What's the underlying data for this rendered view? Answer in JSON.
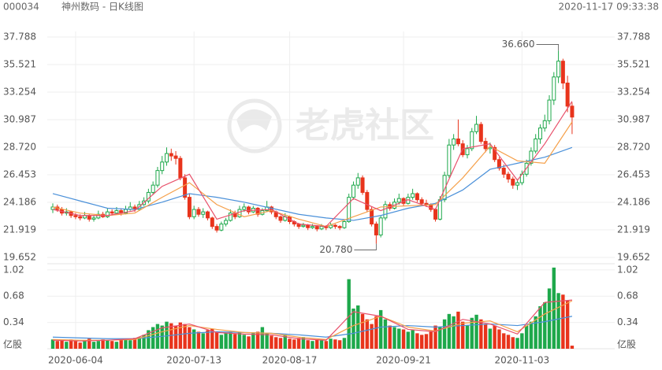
{
  "header": {
    "code": "000034",
    "name": "神州数码 - 日K线图",
    "datetime": "2020-11-17 09:33:38"
  },
  "watermark": "老虎社区",
  "chart_data": {
    "type": "candlestick",
    "up_color": "#1ea84b",
    "down_color": "#e8341c",
    "ylim": [
      19.652,
      37.788
    ],
    "yticks": [
      37.788,
      35.521,
      33.254,
      30.987,
      {
        "value": 28.72,
        "label": "28.720"
      },
      26.453,
      24.186,
      21.919,
      19.652
    ],
    "xticks": [
      {
        "value": 5,
        "label": "2020-06-04"
      },
      {
        "value": 31,
        "label": "2020-07-13"
      },
      {
        "value": 52,
        "label": "2020-08-17"
      },
      {
        "value": 77,
        "label": "2020-09-21"
      },
      {
        "value": 103,
        "label": "2020-11-03"
      }
    ],
    "grid": true,
    "candles": [
      [
        23.6,
        24.1,
        23.3,
        23.8
      ],
      [
        23.8,
        24.0,
        23.4,
        23.6
      ],
      [
        23.6,
        23.8,
        23.1,
        23.3
      ],
      [
        23.3,
        23.7,
        23.1,
        23.4
      ],
      [
        23.4,
        23.5,
        22.9,
        23.1
      ],
      [
        23.1,
        23.3,
        22.8,
        23.0
      ],
      [
        23.0,
        23.2,
        22.7,
        22.9
      ],
      [
        22.9,
        23.4,
        22.8,
        23.1
      ],
      [
        23.1,
        23.2,
        22.6,
        22.8
      ],
      [
        22.8,
        23.1,
        22.6,
        22.9
      ],
      [
        22.9,
        23.5,
        22.8,
        23.2
      ],
      [
        23.2,
        23.4,
        22.9,
        23.0
      ],
      [
        23.0,
        23.7,
        22.9,
        23.4
      ],
      [
        23.4,
        23.6,
        23.1,
        23.3
      ],
      [
        23.3,
        23.8,
        23.2,
        23.5
      ],
      [
        23.5,
        23.7,
        23.1,
        23.3
      ],
      [
        23.3,
        23.9,
        23.2,
        23.6
      ],
      [
        23.6,
        24.2,
        23.5,
        23.8
      ],
      [
        23.8,
        24.0,
        23.4,
        23.6
      ],
      [
        23.6,
        24.3,
        23.5,
        24.0
      ],
      [
        24.0,
        24.6,
        23.9,
        24.3
      ],
      [
        24.3,
        25.3,
        24.1,
        25.0
      ],
      [
        25.0,
        25.9,
        24.8,
        25.6
      ],
      [
        25.6,
        27.1,
        25.4,
        26.8
      ],
      [
        26.8,
        28.0,
        26.5,
        27.5
      ],
      [
        27.5,
        28.7,
        27.2,
        28.2
      ],
      [
        28.2,
        28.6,
        27.6,
        28.0
      ],
      [
        28.0,
        28.4,
        27.3,
        27.8
      ],
      [
        27.8,
        28.0,
        26.0,
        26.2
      ],
      [
        26.2,
        26.5,
        24.4,
        24.6
      ],
      [
        24.6,
        24.9,
        22.8,
        23.0
      ],
      [
        23.0,
        23.9,
        22.8,
        23.6
      ],
      [
        23.6,
        23.8,
        23.0,
        23.2
      ],
      [
        23.2,
        23.7,
        22.9,
        23.4
      ],
      [
        23.4,
        23.5,
        22.7,
        22.9
      ],
      [
        22.9,
        23.0,
        22.0,
        22.2
      ],
      [
        22.2,
        22.4,
        21.7,
        21.9
      ],
      [
        21.9,
        22.6,
        21.8,
        22.4
      ],
      [
        22.4,
        22.9,
        22.2,
        22.7
      ],
      [
        22.7,
        23.6,
        22.6,
        23.3
      ],
      [
        23.3,
        23.5,
        22.8,
        23.0
      ],
      [
        23.0,
        23.9,
        22.9,
        23.6
      ],
      [
        23.6,
        24.1,
        23.4,
        23.8
      ],
      [
        23.8,
        23.9,
        23.2,
        23.4
      ],
      [
        23.4,
        23.9,
        23.3,
        23.7
      ],
      [
        23.7,
        23.8,
        23.0,
        23.2
      ],
      [
        23.2,
        23.7,
        23.1,
        23.5
      ],
      [
        23.5,
        24.3,
        23.4,
        23.8
      ],
      [
        23.8,
        23.9,
        23.2,
        23.4
      ],
      [
        23.4,
        23.5,
        22.8,
        23.0
      ],
      [
        23.0,
        23.1,
        22.5,
        22.7
      ],
      [
        22.7,
        23.3,
        22.6,
        23.0
      ],
      [
        23.0,
        23.1,
        22.4,
        22.6
      ],
      [
        22.6,
        22.7,
        22.2,
        22.4
      ],
      [
        22.4,
        22.5,
        22.0,
        22.2
      ],
      [
        22.2,
        22.5,
        22.1,
        22.3
      ],
      [
        22.3,
        22.4,
        21.9,
        22.1
      ],
      [
        22.1,
        22.4,
        22.0,
        22.2
      ],
      [
        22.2,
        22.3,
        21.8,
        22.0
      ],
      [
        22.0,
        22.4,
        21.9,
        22.2
      ],
      [
        22.2,
        22.3,
        21.9,
        22.1
      ],
      [
        22.1,
        22.5,
        22.0,
        22.3
      ],
      [
        22.3,
        22.4,
        22.0,
        22.2
      ],
      [
        22.2,
        22.3,
        21.9,
        22.1
      ],
      [
        22.1,
        22.8,
        22.0,
        22.6
      ],
      [
        22.6,
        24.9,
        22.5,
        24.6
      ],
      [
        24.6,
        25.9,
        24.4,
        25.6
      ],
      [
        25.6,
        26.6,
        25.3,
        26.2
      ],
      [
        26.2,
        26.4,
        24.8,
        25.0
      ],
      [
        25.0,
        25.2,
        23.4,
        23.6
      ],
      [
        23.6,
        23.8,
        22.2,
        22.4
      ],
      [
        22.4,
        22.6,
        20.78,
        21.5
      ],
      [
        21.5,
        23.1,
        21.3,
        22.9
      ],
      [
        22.9,
        24.3,
        22.7,
        24.0
      ],
      [
        24.0,
        24.2,
        23.5,
        23.7
      ],
      [
        23.7,
        24.5,
        23.6,
        24.2
      ],
      [
        24.2,
        24.9,
        24.0,
        24.5
      ],
      [
        24.5,
        24.6,
        23.9,
        24.1
      ],
      [
        24.1,
        24.9,
        24.0,
        24.6
      ],
      [
        24.6,
        25.3,
        24.4,
        24.9
      ],
      [
        24.9,
        25.0,
        24.2,
        24.4
      ],
      [
        24.4,
        24.6,
        23.9,
        24.1
      ],
      [
        24.1,
        24.4,
        23.8,
        24.0
      ],
      [
        24.0,
        24.1,
        23.4,
        23.6
      ],
      [
        23.6,
        23.7,
        22.6,
        22.8
      ],
      [
        22.8,
        24.7,
        22.7,
        24.4
      ],
      [
        24.4,
        26.7,
        24.2,
        26.4
      ],
      [
        26.4,
        29.4,
        26.2,
        28.9
      ],
      [
        28.9,
        29.8,
        28.5,
        29.4
      ],
      [
        29.4,
        31.0,
        28.8,
        29.0
      ],
      [
        29.0,
        29.3,
        27.9,
        28.1
      ],
      [
        28.1,
        28.9,
        27.8,
        28.6
      ],
      [
        28.6,
        30.3,
        28.4,
        30.0
      ],
      [
        30.0,
        31.3,
        29.8,
        30.6
      ],
      [
        30.6,
        30.8,
        29.0,
        29.2
      ],
      [
        29.2,
        29.5,
        28.3,
        28.6
      ],
      [
        28.6,
        29.1,
        28.2,
        28.7
      ],
      [
        28.7,
        28.9,
        27.5,
        27.7
      ],
      [
        27.7,
        27.9,
        26.8,
        27.0
      ],
      [
        27.0,
        27.3,
        26.2,
        26.5
      ],
      [
        26.5,
        26.7,
        25.8,
        26.1
      ],
      [
        26.1,
        26.3,
        25.3,
        25.6
      ],
      [
        25.6,
        26.1,
        25.2,
        25.8
      ],
      [
        25.8,
        26.8,
        25.6,
        26.5
      ],
      [
        26.5,
        27.7,
        26.3,
        27.4
      ],
      [
        27.4,
        28.7,
        27.2,
        28.4
      ],
      [
        28.4,
        29.8,
        28.2,
        29.4
      ],
      [
        29.4,
        30.6,
        29.0,
        30.3
      ],
      [
        30.3,
        31.4,
        30.0,
        30.9
      ],
      [
        30.9,
        33.0,
        30.6,
        32.6
      ],
      [
        32.6,
        34.9,
        32.2,
        34.5
      ],
      [
        34.5,
        36.66,
        34.0,
        35.8
      ],
      [
        35.8,
        36.0,
        33.5,
        34.0
      ],
      [
        34.0,
        34.6,
        31.6,
        32.1
      ],
      [
        32.1,
        32.4,
        29.8,
        31.2
      ]
    ],
    "lines": [
      {
        "color": "#4a90d9",
        "x": [
          0,
          6,
          12,
          18,
          24,
          30,
          36,
          42,
          48,
          54,
          60,
          66,
          72,
          78,
          84,
          90,
          96,
          102,
          108,
          114
        ],
        "values": [
          24.9,
          24.3,
          23.7,
          23.6,
          24.2,
          24.9,
          24.6,
          24.2,
          23.7,
          23.2,
          22.9,
          22.7,
          23.1,
          23.7,
          24.1,
          25.2,
          26.9,
          27.4,
          27.9,
          28.7
        ]
      },
      {
        "color": "#f5a04a",
        "x": [
          0,
          6,
          12,
          18,
          24,
          30,
          36,
          42,
          48,
          54,
          60,
          66,
          72,
          78,
          84,
          90,
          96,
          102,
          108,
          114
        ],
        "values": [
          23.8,
          23.3,
          23.1,
          23.3,
          24.6,
          25.8,
          24.0,
          23.0,
          23.5,
          22.8,
          22.2,
          23.0,
          23.8,
          23.9,
          24.0,
          26.2,
          28.8,
          27.6,
          27.4,
          30.8
        ]
      },
      {
        "color": "#e8506a",
        "x": [
          0,
          6,
          12,
          18,
          24,
          30,
          36,
          42,
          48,
          54,
          60,
          66,
          72,
          78,
          84,
          90,
          96,
          102,
          108,
          114
        ],
        "values": [
          23.6,
          23.1,
          23.1,
          23.5,
          25.5,
          26.5,
          22.8,
          23.5,
          23.6,
          22.4,
          22.2,
          24.5,
          23.5,
          24.4,
          23.6,
          28.6,
          29.0,
          26.0,
          29.0,
          32.5
        ]
      }
    ],
    "annotations": [
      {
        "x": 111,
        "value": 36.66,
        "label": "36.660"
      },
      {
        "x": 71,
        "value": 20.78,
        "label": "20.780"
      }
    ],
    "volume": {
      "unit_label": "亿股",
      "ylim": [
        0,
        1.1
      ],
      "yticks": [
        0.34,
        0.68,
        1.02
      ],
      "values": [
        0.12,
        0.1,
        0.11,
        0.09,
        0.12,
        0.1,
        0.08,
        0.11,
        0.13,
        0.09,
        0.1,
        0.12,
        0.11,
        0.1,
        0.09,
        0.12,
        0.13,
        0.11,
        0.14,
        0.15,
        0.18,
        0.24,
        0.28,
        0.32,
        0.3,
        0.35,
        0.33,
        0.3,
        0.34,
        0.32,
        0.28,
        0.25,
        0.22,
        0.2,
        0.24,
        0.26,
        0.22,
        0.18,
        0.2,
        0.22,
        0.19,
        0.21,
        0.18,
        0.16,
        0.2,
        0.22,
        0.28,
        0.2,
        0.17,
        0.15,
        0.14,
        0.18,
        0.13,
        0.12,
        0.14,
        0.15,
        0.11,
        0.1,
        0.12,
        0.11,
        0.1,
        0.13,
        0.12,
        0.11,
        0.14,
        0.9,
        0.52,
        0.56,
        0.45,
        0.38,
        0.32,
        0.42,
        0.5,
        0.38,
        0.3,
        0.28,
        0.26,
        0.25,
        0.22,
        0.24,
        0.2,
        0.18,
        0.19,
        0.22,
        0.3,
        0.28,
        0.38,
        0.45,
        0.42,
        0.48,
        0.35,
        0.3,
        0.4,
        0.44,
        0.38,
        0.32,
        0.26,
        0.3,
        0.25,
        0.2,
        0.18,
        0.15,
        0.14,
        0.2,
        0.3,
        0.35,
        0.42,
        0.55,
        0.6,
        0.78,
        1.05,
        0.72,
        0.7,
        0.62,
        0.04
      ],
      "lines": [
        {
          "color": "#4a90d9",
          "x": [
            0,
            6,
            12,
            18,
            24,
            30,
            36,
            42,
            48,
            54,
            60,
            66,
            72,
            78,
            84,
            90,
            96,
            102,
            108,
            114
          ],
          "values": [
            0.15,
            0.14,
            0.13,
            0.13,
            0.16,
            0.2,
            0.22,
            0.21,
            0.2,
            0.18,
            0.15,
            0.2,
            0.28,
            0.3,
            0.28,
            0.3,
            0.32,
            0.3,
            0.35,
            0.42
          ]
        },
        {
          "color": "#f5a04a",
          "x": [
            0,
            6,
            12,
            18,
            24,
            30,
            36,
            42,
            48,
            54,
            60,
            66,
            72,
            78,
            84,
            90,
            96,
            102,
            108,
            114
          ],
          "values": [
            0.12,
            0.11,
            0.11,
            0.12,
            0.22,
            0.3,
            0.25,
            0.21,
            0.2,
            0.15,
            0.12,
            0.3,
            0.42,
            0.28,
            0.23,
            0.33,
            0.36,
            0.22,
            0.45,
            0.62
          ]
        },
        {
          "color": "#e8506a",
          "x": [
            0,
            6,
            12,
            18,
            24,
            30,
            36,
            42,
            48,
            54,
            60,
            66,
            72,
            78,
            84,
            90,
            96,
            102,
            108,
            114
          ],
          "values": [
            0.11,
            0.1,
            0.11,
            0.13,
            0.27,
            0.32,
            0.21,
            0.19,
            0.18,
            0.13,
            0.11,
            0.48,
            0.42,
            0.25,
            0.22,
            0.38,
            0.32,
            0.19,
            0.6,
            0.63
          ]
        }
      ]
    }
  }
}
